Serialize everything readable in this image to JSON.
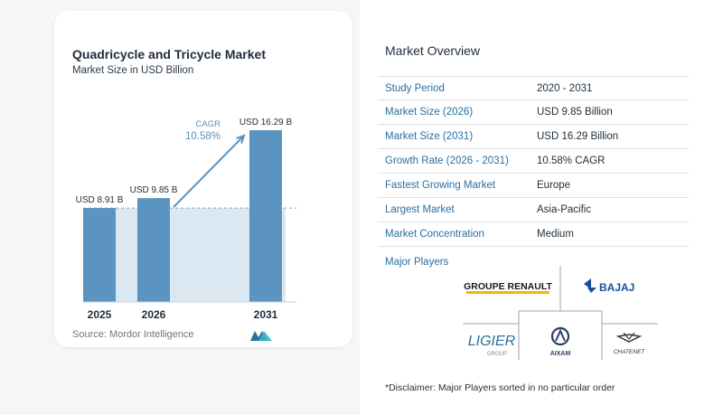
{
  "chart_data": {
    "type": "bar",
    "title": "Quadricycle and Tricycle Market",
    "subtitle": "Market Size in USD Billion",
    "categories": [
      "2025",
      "2026",
      "2031"
    ],
    "values": [
      8.91,
      9.85,
      16.29
    ],
    "data_labels": [
      "USD 8.91 B",
      "USD 9.85 B",
      "USD 16.29 B"
    ],
    "ylim": [
      0,
      16.29
    ],
    "cagr_label": "CAGR",
    "cagr_value": "10.58%",
    "source": "Source:  Mordor Intelligence",
    "bar_color": "#5b94c0",
    "shade_color": "#dbe8f2",
    "arrow_color": "#5b94c0"
  },
  "overview": {
    "title": "Market Overview",
    "rows": [
      {
        "label": "Study Period",
        "value": "2020 - 2031"
      },
      {
        "label": "Market Size (2026)",
        "value": "USD 9.85 Billion"
      },
      {
        "label": "Market Size (2031)",
        "value": "USD 16.29 Billion"
      },
      {
        "label": "Growth Rate (2026 - 2031)",
        "value": "10.58% CAGR"
      },
      {
        "label": "Fastest Growing Market",
        "value": "Europe"
      },
      {
        "label": "Largest Market",
        "value": "Asia-Pacific"
      },
      {
        "label": "Market Concentration",
        "value": "Medium"
      }
    ]
  },
  "players": {
    "title": "Major Players",
    "logos": {
      "renault": "GROUPE RENAULT",
      "bajaj": "BAJAJ",
      "ligier": "LIGIER",
      "ligier_sub": "GROUP",
      "aixam": "AIXAM",
      "chatenet": "CHATENET"
    }
  },
  "disclaimer": "*Disclaimer: Major Players sorted in no particular order",
  "colors": {
    "accent": "#2a6f9e",
    "renault_yellow": "#f2b705",
    "bajaj_blue": "#1a4f9c"
  }
}
